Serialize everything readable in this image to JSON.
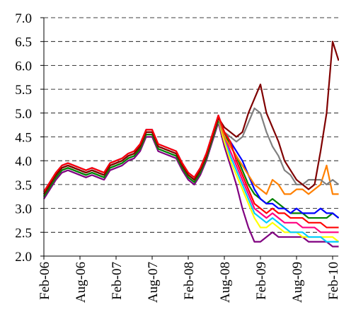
{
  "chart_data": {
    "type": "line",
    "categories": [
      "Feb-06",
      null,
      null,
      null,
      null,
      null,
      "Aug-06",
      null,
      null,
      null,
      null,
      null,
      "Feb-07",
      null,
      null,
      null,
      null,
      null,
      "Aug-07",
      null,
      null,
      null,
      null,
      null,
      "Feb-08",
      null,
      null,
      null,
      null,
      null,
      "Aug-08",
      null,
      null,
      null,
      null,
      null,
      "Feb-09",
      null,
      null,
      null,
      null,
      null,
      "Aug-09",
      null,
      null,
      null,
      null,
      null,
      "Feb-10",
      null
    ],
    "ylim": [
      2.0,
      7.0
    ],
    "yticks": [
      {
        "value": 2.0,
        "label": "2.0"
      },
      {
        "value": 2.5,
        "label": "2.5"
      },
      {
        "value": 3.0,
        "label": "3.0"
      },
      {
        "value": 3.5,
        "label": "3.5"
      },
      {
        "value": 4.0,
        "label": "4.0"
      },
      {
        "value": 4.5,
        "label": "4.5"
      },
      {
        "value": 5.0,
        "label": "5.0"
      },
      {
        "value": 5.5,
        "label": "5.5"
      },
      {
        "value": 6.0,
        "label": "6.0"
      },
      {
        "value": 6.5,
        "label": "6.5"
      },
      {
        "value": 7.0,
        "label": "7.0"
      }
    ],
    "grid": true,
    "series": [
      {
        "color": "#800080",
        "values": [
          3.2,
          3.4,
          3.6,
          3.75,
          3.8,
          3.75,
          3.7,
          3.65,
          3.7,
          3.65,
          3.6,
          3.8,
          3.85,
          3.9,
          4.0,
          4.05,
          4.2,
          4.5,
          4.5,
          4.2,
          4.15,
          4.1,
          4.05,
          3.8,
          3.6,
          3.5,
          3.7,
          4.0,
          4.4,
          4.8,
          4.3,
          3.9,
          3.5,
          3.0,
          2.6,
          2.3,
          2.3,
          2.4,
          2.5,
          2.4,
          2.4,
          2.4,
          2.4,
          2.4,
          2.3,
          2.3,
          2.3,
          2.3,
          2.2,
          2.2
        ]
      },
      {
        "color": "#ffff00",
        "values": [
          3.25,
          3.45,
          3.65,
          3.8,
          3.85,
          3.8,
          3.75,
          3.7,
          3.75,
          3.7,
          3.65,
          3.85,
          3.9,
          3.95,
          4.05,
          4.1,
          4.25,
          4.55,
          4.55,
          4.25,
          4.2,
          4.15,
          4.1,
          3.85,
          3.65,
          3.55,
          3.75,
          4.05,
          4.45,
          4.85,
          4.4,
          4.0,
          3.7,
          3.4,
          3.1,
          2.8,
          2.6,
          2.6,
          2.7,
          2.6,
          2.5,
          2.5,
          2.5,
          2.4,
          2.4,
          2.4,
          2.4,
          2.4,
          2.4,
          2.3
        ]
      },
      {
        "color": "#00ccff",
        "values": [
          3.25,
          3.45,
          3.65,
          3.8,
          3.85,
          3.8,
          3.75,
          3.7,
          3.75,
          3.7,
          3.65,
          3.85,
          3.9,
          3.95,
          4.05,
          4.1,
          4.25,
          4.55,
          4.55,
          4.25,
          4.2,
          4.15,
          4.1,
          3.85,
          3.65,
          3.55,
          3.75,
          4.05,
          4.45,
          4.85,
          4.5,
          4.1,
          3.8,
          3.5,
          3.2,
          2.9,
          2.8,
          2.7,
          2.8,
          2.7,
          2.6,
          2.5,
          2.5,
          2.5,
          2.4,
          2.4,
          2.4,
          2.3,
          2.3,
          2.3
        ]
      },
      {
        "color": "#ff0080",
        "values": [
          3.3,
          3.5,
          3.7,
          3.85,
          3.9,
          3.85,
          3.8,
          3.75,
          3.8,
          3.75,
          3.7,
          3.9,
          3.95,
          4.0,
          4.1,
          4.15,
          4.3,
          4.6,
          4.6,
          4.3,
          4.25,
          4.2,
          4.15,
          3.9,
          3.7,
          3.6,
          3.8,
          4.1,
          4.5,
          4.9,
          4.5,
          4.2,
          3.9,
          3.6,
          3.3,
          3.0,
          2.9,
          2.8,
          2.9,
          2.8,
          2.7,
          2.7,
          2.7,
          2.6,
          2.6,
          2.6,
          2.5,
          2.5,
          2.5,
          2.5
        ]
      },
      {
        "color": "#008000",
        "values": [
          3.25,
          3.45,
          3.65,
          3.8,
          3.85,
          3.8,
          3.75,
          3.7,
          3.75,
          3.7,
          3.65,
          3.85,
          3.9,
          3.95,
          4.05,
          4.1,
          4.25,
          4.55,
          4.55,
          4.25,
          4.2,
          4.15,
          4.1,
          3.85,
          3.65,
          3.55,
          3.75,
          4.05,
          4.45,
          4.85,
          4.6,
          4.3,
          4.1,
          3.8,
          3.5,
          3.3,
          3.2,
          3.1,
          3.2,
          3.1,
          3.0,
          2.9,
          2.9,
          2.9,
          2.8,
          2.8,
          2.8,
          2.8,
          2.9,
          2.8
        ]
      },
      {
        "color": "#0000ff",
        "values": [
          3.35,
          3.55,
          3.75,
          3.9,
          3.95,
          3.9,
          3.85,
          3.8,
          3.85,
          3.8,
          3.75,
          3.95,
          4.0,
          4.05,
          4.15,
          4.2,
          4.35,
          4.65,
          4.65,
          4.35,
          4.3,
          4.25,
          4.2,
          3.95,
          3.75,
          3.65,
          3.85,
          4.15,
          4.55,
          4.95,
          4.6,
          4.4,
          4.2,
          4.0,
          3.7,
          3.4,
          3.2,
          3.1,
          3.1,
          3.0,
          3.0,
          2.9,
          3.0,
          2.9,
          2.9,
          2.9,
          3.0,
          2.9,
          2.9,
          2.8
        ]
      },
      {
        "color": "#ff8000",
        "values": [
          3.3,
          3.5,
          3.7,
          3.85,
          3.9,
          3.85,
          3.8,
          3.75,
          3.8,
          3.75,
          3.7,
          3.9,
          3.95,
          4.0,
          4.1,
          4.15,
          4.3,
          4.6,
          4.6,
          4.3,
          4.25,
          4.2,
          4.15,
          3.9,
          3.7,
          3.6,
          3.8,
          4.1,
          4.5,
          4.9,
          4.5,
          4.3,
          4.1,
          3.9,
          3.7,
          3.5,
          3.4,
          3.3,
          3.6,
          3.5,
          3.3,
          3.3,
          3.4,
          3.4,
          3.3,
          3.4,
          3.5,
          3.9,
          3.3,
          3.3
        ]
      },
      {
        "color": "#808080",
        "values": [
          3.3,
          3.5,
          3.7,
          3.85,
          3.9,
          3.85,
          3.8,
          3.75,
          3.8,
          3.75,
          3.7,
          3.9,
          3.95,
          4.0,
          4.1,
          4.15,
          4.3,
          4.6,
          4.6,
          4.3,
          4.25,
          4.2,
          4.15,
          3.9,
          3.7,
          3.6,
          3.8,
          4.1,
          4.5,
          4.9,
          4.6,
          4.5,
          4.4,
          4.5,
          4.8,
          5.1,
          5.0,
          4.6,
          4.3,
          4.1,
          3.8,
          3.7,
          3.5,
          3.5,
          3.6,
          3.6,
          3.6,
          3.5,
          3.6,
          3.5
        ]
      },
      {
        "color": "#800000",
        "values": [
          3.3,
          3.5,
          3.7,
          3.85,
          3.9,
          3.85,
          3.8,
          3.75,
          3.8,
          3.75,
          3.7,
          3.9,
          3.95,
          4.0,
          4.1,
          4.15,
          4.3,
          4.6,
          4.6,
          4.3,
          4.25,
          4.2,
          4.15,
          3.9,
          3.7,
          3.6,
          3.8,
          4.1,
          4.5,
          4.9,
          4.7,
          4.6,
          4.5,
          4.6,
          5.0,
          5.3,
          5.6,
          5.0,
          4.7,
          4.4,
          4.0,
          3.8,
          3.6,
          3.5,
          3.4,
          3.5,
          4.2,
          5.0,
          6.5,
          6.1
        ]
      },
      {
        "color": "#ff0000",
        "values": [
          3.35,
          3.55,
          3.75,
          3.9,
          3.95,
          3.9,
          3.85,
          3.8,
          3.85,
          3.8,
          3.75,
          3.95,
          4.0,
          4.05,
          4.15,
          4.2,
          4.35,
          4.65,
          4.65,
          4.35,
          4.3,
          4.25,
          4.2,
          3.95,
          3.75,
          3.65,
          3.85,
          4.15,
          4.55,
          4.95,
          4.6,
          4.4,
          4.0,
          3.7,
          3.4,
          3.1,
          3.0,
          2.9,
          3.0,
          2.9,
          2.9,
          2.8,
          2.8,
          2.8,
          2.7,
          2.7,
          2.7,
          2.6,
          2.6,
          2.6
        ]
      }
    ]
  }
}
